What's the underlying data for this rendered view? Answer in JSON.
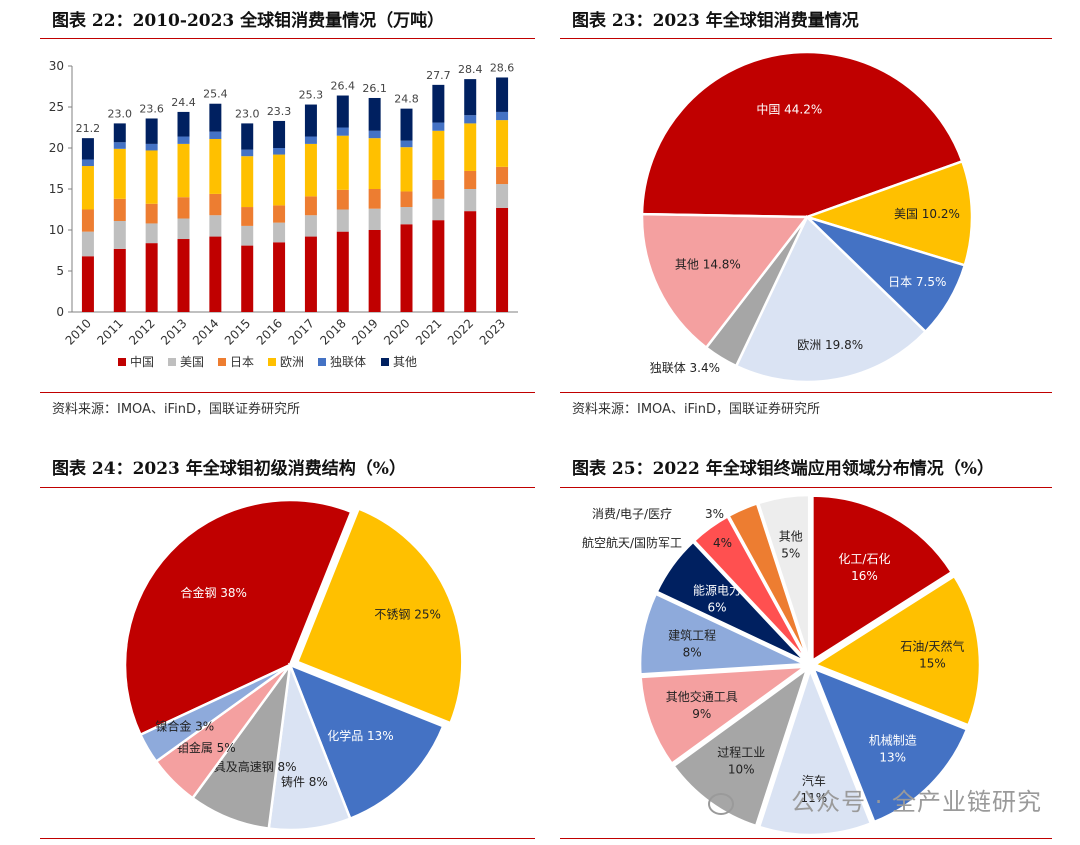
{
  "panel1": {
    "title": "图表 22：2010-2023 全球钼消费量情况（万吨）",
    "source": "资料来源：IMOA、iFinD，国联证券研究所"
  },
  "panel2": {
    "title": "图表 23：2023 年全球钼消费量情况",
    "source": "资料来源：IMOA、iFinD，国联证券研究所"
  },
  "panel3": {
    "title": "图表 24：2023 年全球钼初级消费结构（%）"
  },
  "panel4": {
    "title": "图表 25：2022 年全球钼终端应用领域分布情况（%）"
  },
  "watermark": "公众号 · 全产业链研究",
  "chart_data": [
    {
      "type": "bar",
      "stacked": true,
      "categories": [
        "2010",
        "2011",
        "2012",
        "2013",
        "2014",
        "2015",
        "2016",
        "2017",
        "2018",
        "2019",
        "2020",
        "2021",
        "2022",
        "2023"
      ],
      "totals": [
        21.2,
        23.0,
        23.6,
        24.4,
        25.4,
        23.0,
        23.3,
        25.3,
        26.4,
        26.1,
        24.8,
        27.7,
        28.4,
        28.6
      ],
      "total_labels": [
        "21.2",
        "23.0",
        "23.6",
        "24.4",
        "25.4",
        "23.0",
        "23.3",
        "25.3",
        "26.4",
        "26.1",
        "24.8",
        "27.7",
        "28.4",
        "28.6"
      ],
      "series": [
        {
          "name": "中国",
          "color": "#c00000",
          "values": [
            6.8,
            7.7,
            8.4,
            8.9,
            9.2,
            8.1,
            8.5,
            9.2,
            9.8,
            10.0,
            10.7,
            11.2,
            12.3,
            12.7
          ]
        },
        {
          "name": "美国",
          "color": "#bfbfbf",
          "values": [
            3.0,
            3.4,
            2.4,
            2.5,
            2.6,
            2.4,
            2.4,
            2.6,
            2.7,
            2.6,
            2.1,
            2.6,
            2.7,
            2.9
          ]
        },
        {
          "name": "日本",
          "color": "#ed7d31",
          "values": [
            2.7,
            2.7,
            2.4,
            2.6,
            2.6,
            2.3,
            2.1,
            2.3,
            2.4,
            2.4,
            1.9,
            2.3,
            2.2,
            2.1
          ]
        },
        {
          "name": "欧洲",
          "color": "#ffc000",
          "values": [
            5.3,
            6.1,
            6.5,
            6.5,
            6.7,
            6.2,
            6.2,
            6.4,
            6.6,
            6.2,
            5.4,
            6.0,
            5.8,
            5.7
          ]
        },
        {
          "name": "独联体",
          "color": "#4472c4",
          "values": [
            0.8,
            0.8,
            0.8,
            0.9,
            0.9,
            0.8,
            0.8,
            0.9,
            1.0,
            0.9,
            0.8,
            1.0,
            1.0,
            1.0
          ]
        },
        {
          "name": "其他",
          "color": "#002060",
          "values": [
            2.6,
            2.3,
            3.1,
            3.0,
            3.4,
            3.2,
            3.3,
            3.9,
            3.9,
            4.0,
            3.9,
            4.6,
            4.4,
            4.2
          ]
        }
      ],
      "ylim": [
        0,
        30
      ],
      "yticks": [
        "0",
        "5",
        "10",
        "15",
        "20",
        "25",
        "30"
      ],
      "grid": false,
      "legend_position": "bottom"
    },
    {
      "type": "pie",
      "slices": [
        {
          "label": "中国 44.2%",
          "value": 44.2,
          "color": "#c00000",
          "text_color": "#ffffff"
        },
        {
          "label": "美国 10.2%",
          "value": 10.2,
          "color": "#ffc000",
          "text_color": "#222222"
        },
        {
          "label": "日本 7.5%",
          "value": 7.5,
          "color": "#4472c4",
          "text_color": "#ffffff"
        },
        {
          "label": "欧洲 19.8%",
          "value": 19.8,
          "color": "#dae3f3",
          "text_color": "#222222"
        },
        {
          "label": "独联体 3.4%",
          "value": 3.4,
          "color": "#a6a6a6",
          "text_color": "#222222"
        },
        {
          "label": "其他 14.8%",
          "value": 14.8,
          "color": "#f4a0a0",
          "text_color": "#222222"
        }
      ]
    },
    {
      "type": "pie",
      "slices": [
        {
          "label": "合金钢 38%",
          "value": 38,
          "color": "#c00000",
          "text_color": "#ffffff"
        },
        {
          "label": "不锈钢 25%",
          "value": 25,
          "color": "#ffc000",
          "text_color": "#222222"
        },
        {
          "label": "化学品 13%",
          "value": 13,
          "color": "#4472c4",
          "text_color": "#ffffff"
        },
        {
          "label": "铸件 8%",
          "value": 8,
          "color": "#dae3f3",
          "text_color": "#222222"
        },
        {
          "label": "工具及高速钢 8%",
          "value": 8,
          "color": "#a6a6a6",
          "text_color": "#222222"
        },
        {
          "label": "钼金属 5%",
          "value": 5,
          "color": "#f4a0a0",
          "text_color": "#222222"
        },
        {
          "label": "镍合金 3%",
          "value": 3,
          "color": "#8eaadb",
          "text_color": "#222222"
        }
      ]
    },
    {
      "type": "pie",
      "slices": [
        {
          "label": "化工/石化 16%",
          "value": 16,
          "color": "#c00000",
          "text_color": "#ffffff"
        },
        {
          "label": "石油/天然气 15%",
          "value": 15,
          "color": "#ffc000",
          "text_color": "#222222"
        },
        {
          "label": "机械制造 13%",
          "value": 13,
          "color": "#4472c4",
          "text_color": "#ffffff"
        },
        {
          "label": "汽车 11%",
          "value": 11,
          "color": "#dae3f3",
          "text_color": "#222222"
        },
        {
          "label": "过程工业 10%",
          "value": 10,
          "color": "#a6a6a6",
          "text_color": "#222222"
        },
        {
          "label": "其他交通工具 9%",
          "value": 9,
          "color": "#f4a0a0",
          "text_color": "#222222"
        },
        {
          "label": "建筑工程 8%",
          "value": 8,
          "color": "#8eaadb",
          "text_color": "#222222"
        },
        {
          "label": "能源电力 6%",
          "value": 6,
          "color": "#002060",
          "text_color": "#ffffff"
        },
        {
          "label": "航空航天/国防军工 4%",
          "value": 4,
          "color": "#ff5050",
          "text_color": "#222222"
        },
        {
          "label": "消费/电子/医疗 3%",
          "value": 3,
          "color": "#ed7d31",
          "text_color": "#222222"
        },
        {
          "label": "其他 5%",
          "value": 5,
          "color": "#ededed",
          "text_color": "#222222"
        }
      ]
    }
  ]
}
